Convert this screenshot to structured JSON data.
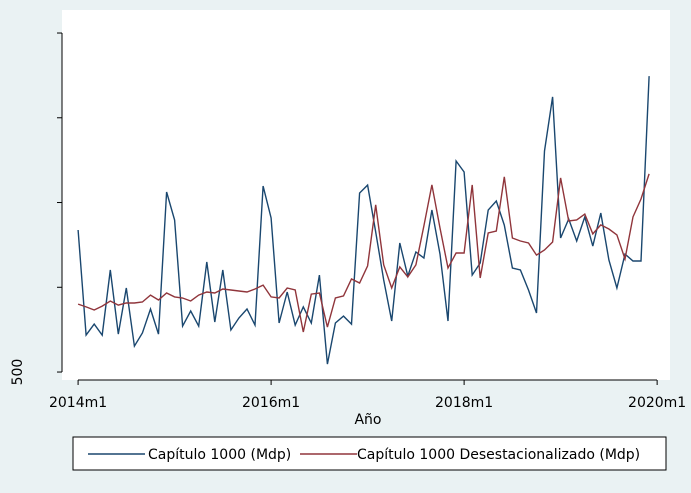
{
  "chart_data": {
    "type": "line",
    "xlabel": "Año",
    "x": [
      648,
      649,
      650,
      651,
      652,
      653,
      654,
      655,
      656,
      657,
      658,
      659,
      660,
      661,
      662,
      663,
      664,
      665,
      666,
      667,
      668,
      669,
      670,
      671,
      672,
      673,
      674,
      675,
      676,
      677,
      678,
      679,
      680,
      681,
      682,
      683,
      684,
      685,
      686,
      687,
      688,
      689,
      690,
      691,
      692,
      693,
      694,
      695,
      696,
      697,
      698,
      699,
      700,
      701,
      702,
      703,
      704,
      705,
      706,
      707,
      708,
      709,
      710,
      711,
      712,
      713,
      714,
      715,
      716,
      717,
      718,
      719
    ],
    "xlim": [
      646,
      721.6
    ],
    "xticks": [
      {
        "value": 648,
        "label": "2014m1"
      },
      {
        "value": 672,
        "label": "2016m1"
      },
      {
        "value": 696,
        "label": "2018m1"
      },
      {
        "value": 720,
        "label": "2020m1"
      }
    ],
    "ylim": [
      453,
      2624
    ],
    "yticks": [
      500
    ],
    "minor_yticks": [
      1000,
      1500,
      2000,
      2500
    ],
    "legend": "bottom",
    "series": [
      {
        "name": "Capítulo 1000 (Mdp)",
        "color": "#1a476f",
        "values": [
          1338,
          718,
          783,
          718,
          1102,
          724,
          996,
          653,
          730,
          872,
          724,
          1562,
          1397,
          771,
          860,
          771,
          1149,
          795,
          1102,
          748,
          819,
          872,
          777,
          1597,
          1409,
          789,
          972,
          777,
          884,
          789,
          1072,
          547,
          789,
          830,
          783,
          1556,
          1603,
          1326,
          1043,
          801,
          1261,
          1066,
          1208,
          1173,
          1456,
          1196,
          801,
          1745,
          1680,
          1072,
          1143,
          1456,
          1509,
          1367,
          1114,
          1102,
          984,
          848,
          1804,
          2123,
          1291,
          1403,
          1273,
          1415,
          1243,
          1438,
          1161,
          996,
          1196,
          1155,
          1155,
          2246
        ]
      },
      {
        "name": "Capítulo 1000 Desestacionalizado (Mdp)",
        "color": "#90353b",
        "values": [
          901,
          884,
          866,
          889,
          919,
          895,
          907,
          907,
          913,
          954,
          925,
          966,
          943,
          937,
          919,
          954,
          972,
          966,
          990,
          984,
          978,
          972,
          990,
          1013,
          943,
          937,
          996,
          984,
          736,
          960,
          966,
          765,
          937,
          949,
          1049,
          1025,
          1126,
          1486,
          1132,
          996,
          1120,
          1061,
          1132,
          1362,
          1604,
          1350,
          1114,
          1202,
          1202,
          1604,
          1055,
          1320,
          1332,
          1651,
          1291,
          1273,
          1261,
          1190,
          1220,
          1267,
          1645,
          1391,
          1397,
          1432,
          1315,
          1368,
          1344,
          1309,
          1167,
          1415,
          1521,
          1669
        ]
      }
    ]
  }
}
